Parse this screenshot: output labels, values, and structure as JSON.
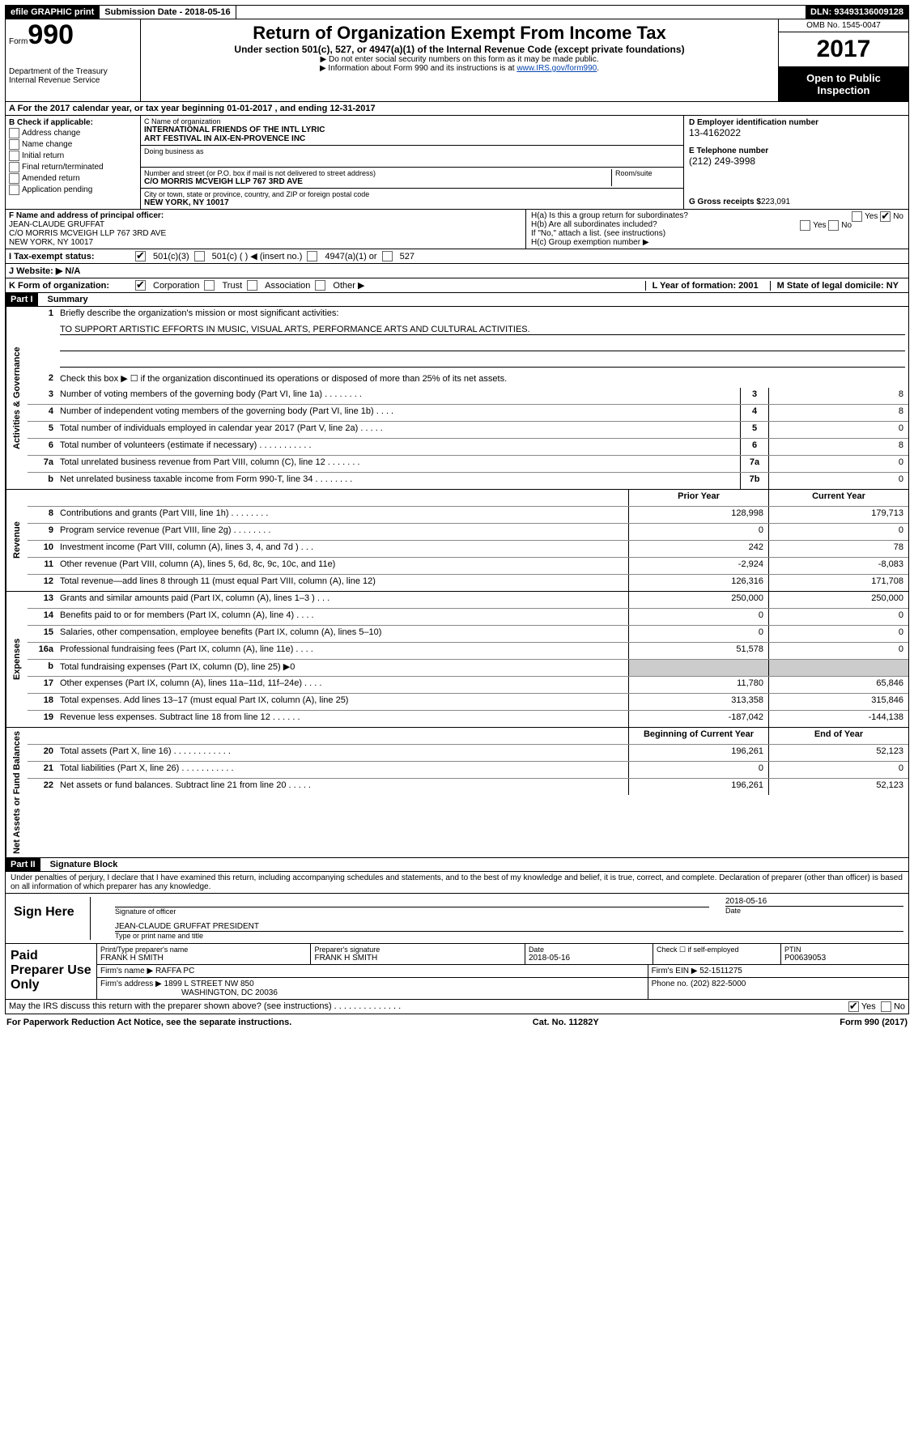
{
  "topbar": {
    "efile": "efile GRAPHIC print",
    "submission_label": "Submission Date - 2018-05-16",
    "dln": "DLN: 93493136009128"
  },
  "header": {
    "form_word": "Form",
    "form_number": "990",
    "dept": "Department of the Treasury\nInternal Revenue Service",
    "title": "Return of Organization Exempt From Income Tax",
    "subtitle": "Under section 501(c), 527, or 4947(a)(1) of the Internal Revenue Code (except private foundations)",
    "note1": "▶ Do not enter social security numbers on this form as it may be made public.",
    "note2": "▶ Information about Form 990 and its instructions is at ",
    "link": "www.IRS.gov/form990",
    "link_after": ".",
    "omb": "OMB No. 1545-0047",
    "year": "2017",
    "open": "Open to Public Inspection"
  },
  "rowA": "A   For the 2017 calendar year, or tax year beginning 01-01-2017   , and ending 12-31-2017",
  "sectionB": {
    "title": "B Check if applicable:",
    "items": [
      "Address change",
      "Name change",
      "Initial return",
      "Final return/terminated",
      "Amended return",
      "Application pending"
    ],
    "c_name_label": "C Name of organization",
    "c_name": "INTERNATIONAL FRIENDS OF THE INTL LYRIC\nART FESTIVAL IN AIX-EN-PROVENCE INC",
    "dba_label": "Doing business as",
    "street_label": "Number and street (or P.O. box if mail is not delivered to street address)",
    "room_label": "Room/suite",
    "street": "C/O MORRIS MCVEIGH LLP 767 3RD AVE",
    "city_label": "City or town, state or province, country, and ZIP or foreign postal code",
    "city": "NEW YORK, NY  10017",
    "d_label": "D Employer identification number",
    "d_val": "13-4162022",
    "e_label": "E Telephone number",
    "e_val": "(212) 249-3998",
    "g_label": "G Gross receipts $",
    "g_val": "223,091"
  },
  "rowF": {
    "f_label": "F Name and address of principal officer:",
    "f_val": "JEAN-CLAUDE GRUFFAT\nC/O MORRIS MCVEIGH LLP 767 3RD AVE\nNEW YORK, NY  10017",
    "ha": "H(a)  Is this a group return for subordinates?",
    "ha_no": "No",
    "hb": "H(b)  Are all subordinates included?",
    "yes": "Yes",
    "no": "No",
    "hb_note": "If \"No,\" attach a list. (see instructions)",
    "hc": "H(c)  Group exemption number ▶"
  },
  "rowI": {
    "label": "I   Tax-exempt status:",
    "opts": [
      "501(c)(3)",
      "501(c) (  ) ◀ (insert no.)",
      "4947(a)(1) or",
      "527"
    ]
  },
  "rowJ": "J   Website: ▶  N/A",
  "rowK": {
    "label": "K Form of organization:",
    "opts": [
      "Corporation",
      "Trust",
      "Association",
      "Other ▶"
    ],
    "l": "L Year of formation: 2001",
    "m": "M State of legal domicile: NY"
  },
  "partI": {
    "label": "Part I",
    "title": "Summary",
    "vside1": "Activities & Governance",
    "vside2": "Revenue",
    "vside3": "Expenses",
    "vside4": "Net Assets or Fund Balances",
    "line1": "Briefly describe the organization's mission or most significant activities:",
    "mission": "TO SUPPORT ARTISTIC EFFORTS IN MUSIC, VISUAL ARTS, PERFORMANCE ARTS AND CULTURAL ACTIVITIES.",
    "line2": "Check this box ▶ ☐  if the organization discontinued its operations or disposed of more than 25% of its net assets.",
    "rows_gov": [
      {
        "n": "3",
        "d": "Number of voting members of the governing body (Part VI, line 1a)  .    .    .    .    .    .    .    .",
        "box": "3",
        "v": "8"
      },
      {
        "n": "4",
        "d": "Number of independent voting members of the governing body (Part VI, line 1b)    .    .    .    .",
        "box": "4",
        "v": "8"
      },
      {
        "n": "5",
        "d": "Total number of individuals employed in calendar year 2017 (Part V, line 2a)    .    .    .    .    .",
        "box": "5",
        "v": "0"
      },
      {
        "n": "6",
        "d": "Total number of volunteers (estimate if necessary)   .    .    .    .    .    .    .    .    .    .    .",
        "box": "6",
        "v": "8"
      },
      {
        "n": "7a",
        "d": "Total unrelated business revenue from Part VIII, column (C), line 12    .    .    .    .    .    .    .",
        "box": "7a",
        "v": "0"
      },
      {
        "n": "b",
        "d": "Net unrelated business taxable income from Form 990-T, line 34   .    .    .    .    .    .    .    .",
        "box": "7b",
        "v": "0"
      }
    ],
    "col_prior": "Prior Year",
    "col_current": "Current Year",
    "rows_rev": [
      {
        "n": "8",
        "d": "Contributions and grants (Part VIII, line 1h)   .    .    .    .    .    .    .    .",
        "p": "128,998",
        "c": "179,713"
      },
      {
        "n": "9",
        "d": "Program service revenue (Part VIII, line 2g)   .    .    .    .    .    .    .    .",
        "p": "0",
        "c": "0"
      },
      {
        "n": "10",
        "d": "Investment income (Part VIII, column (A), lines 3, 4, and 7d )   .    .    .",
        "p": "242",
        "c": "78"
      },
      {
        "n": "11",
        "d": "Other revenue (Part VIII, column (A), lines 5, 6d, 8c, 9c, 10c, and 11e)",
        "p": "-2,924",
        "c": "-8,083"
      },
      {
        "n": "12",
        "d": "Total revenue—add lines 8 through 11 (must equal Part VIII, column (A), line 12)",
        "p": "126,316",
        "c": "171,708"
      }
    ],
    "rows_exp": [
      {
        "n": "13",
        "d": "Grants and similar amounts paid (Part IX, column (A), lines 1–3 )  .    .    .",
        "p": "250,000",
        "c": "250,000"
      },
      {
        "n": "14",
        "d": "Benefits paid to or for members (Part IX, column (A), line 4)   .    .    .    .",
        "p": "0",
        "c": "0"
      },
      {
        "n": "15",
        "d": "Salaries, other compensation, employee benefits (Part IX, column (A), lines 5–10)",
        "p": "0",
        "c": "0"
      },
      {
        "n": "16a",
        "d": "Professional fundraising fees (Part IX, column (A), line 11e)    .    .    .    .",
        "p": "51,578",
        "c": "0"
      },
      {
        "n": "b",
        "d": "Total fundraising expenses (Part IX, column (D), line 25) ▶0",
        "p": "",
        "c": "",
        "grey": true
      },
      {
        "n": "17",
        "d": "Other expenses (Part IX, column (A), lines 11a–11d, 11f–24e)   .    .    .    .",
        "p": "11,780",
        "c": "65,846"
      },
      {
        "n": "18",
        "d": "Total expenses. Add lines 13–17 (must equal Part IX, column (A), line 25)",
        "p": "313,358",
        "c": "315,846"
      },
      {
        "n": "19",
        "d": "Revenue less expenses. Subtract line 18 from line 12    .    .    .    .    .    .",
        "p": "-187,042",
        "c": "-144,138"
      }
    ],
    "col_beg": "Beginning of Current Year",
    "col_end": "End of Year",
    "rows_net": [
      {
        "n": "20",
        "d": "Total assets (Part X, line 16)   .    .    .    .    .    .    .    .    .    .    .    .",
        "p": "196,261",
        "c": "52,123"
      },
      {
        "n": "21",
        "d": "Total liabilities (Part X, line 26)  .    .    .    .    .    .    .    .    .    .    .",
        "p": "0",
        "c": "0"
      },
      {
        "n": "22",
        "d": "Net assets or fund balances. Subtract line 21 from line 20 .    .    .    .    .",
        "p": "196,261",
        "c": "52,123"
      }
    ]
  },
  "partII": {
    "label": "Part II",
    "title": "Signature Block",
    "perjury": "Under penalties of perjury, I declare that I have examined this return, including accompanying schedules and statements, and to the best of my knowledge and belief, it is true, correct, and complete. Declaration of preparer (other than officer) is based on all information of which preparer has any knowledge.",
    "sign_here": "Sign Here",
    "sig_of": "Signature of officer",
    "date": "Date",
    "sig_date": "2018-05-16",
    "officer": "JEAN-CLAUDE GRUFFAT PRESIDENT",
    "name_title": "Type or print name and title",
    "paid": "Paid Preparer Use Only",
    "prep_name_lbl": "Print/Type preparer's name",
    "prep_name": "FRANK H SMITH",
    "prep_sig_lbl": "Preparer's signature",
    "prep_sig": "FRANK H SMITH",
    "prep_date_lbl": "Date",
    "prep_date": "2018-05-16",
    "self_emp": "Check ☐ if self-employed",
    "ptin_lbl": "PTIN",
    "ptin": "P00639053",
    "firm_name_lbl": "Firm's name    ▶",
    "firm_name": "RAFFA PC",
    "firm_ein_lbl": "Firm's EIN ▶",
    "firm_ein": "52-1511275",
    "firm_addr_lbl": "Firm's address ▶",
    "firm_addr": "1899 L STREET NW 850",
    "firm_city": "WASHINGTON, DC  20036",
    "phone_lbl": "Phone no.",
    "phone": "(202) 822-5000",
    "discuss": "May the IRS discuss this return with the preparer shown above? (see instructions)   .    .    .    .    .    .    .    .    .    .    .    .    .    ."
  },
  "footer": {
    "left": "For Paperwork Reduction Act Notice, see the separate instructions.",
    "mid": "Cat. No. 11282Y",
    "right": "Form 990 (2017)"
  }
}
